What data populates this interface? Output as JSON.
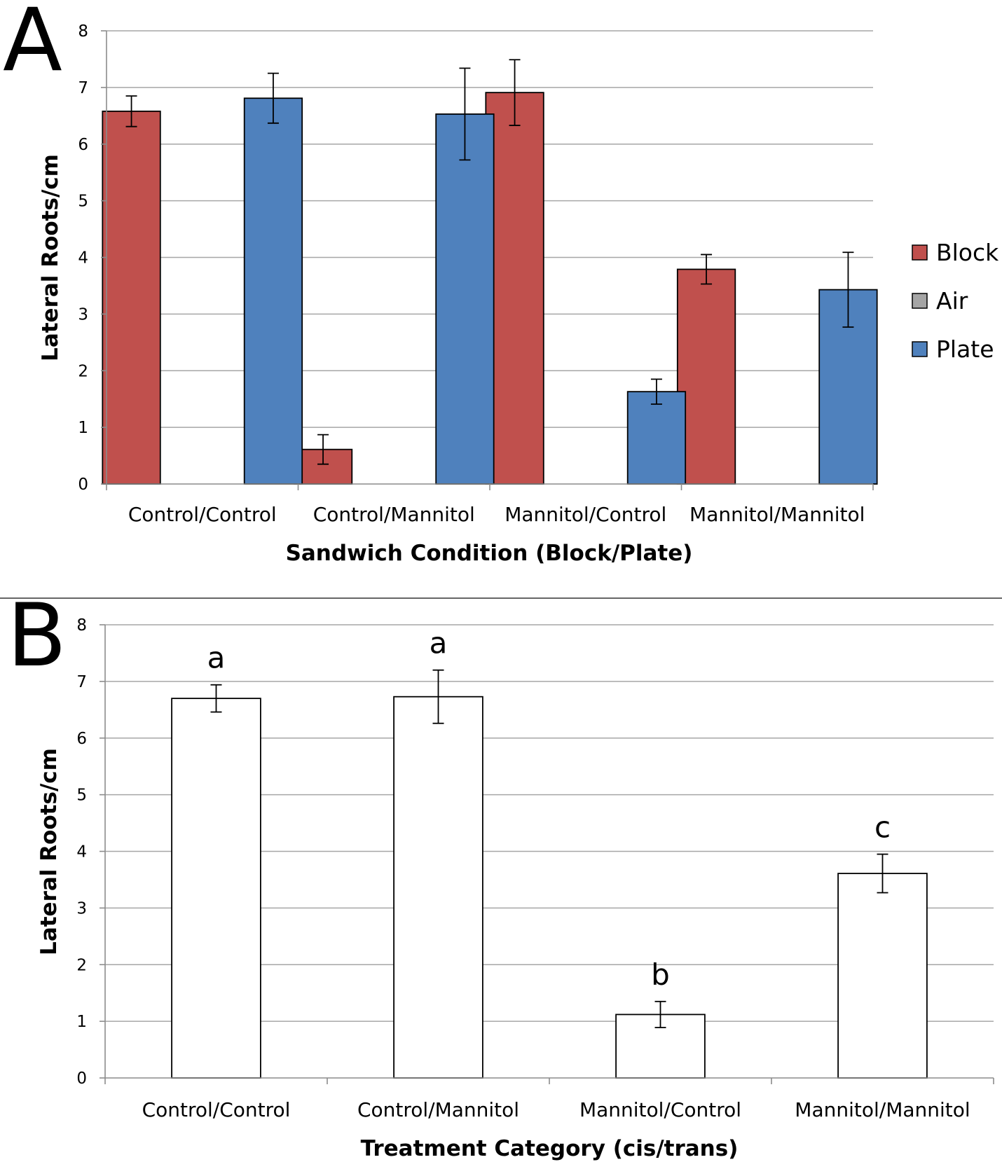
{
  "figure": {
    "divider_color": "#666666"
  },
  "chart_data": [
    {
      "type": "bar",
      "panel_label": "A",
      "categories": [
        "Control/Control",
        "Control/Mannitol",
        "Mannitol/Control",
        "Mannitol/Mannitol"
      ],
      "series": [
        {
          "name": "Block",
          "color": "#c0504d",
          "values": [
            6.58,
            0.61,
            6.91,
            3.79
          ],
          "errors": [
            0.27,
            0.26,
            0.58,
            0.26
          ]
        },
        {
          "name": "Air",
          "color": "#a5a5a5",
          "values": [
            null,
            null,
            null,
            null
          ],
          "errors": [
            null,
            null,
            null,
            null
          ]
        },
        {
          "name": "Plate",
          "color": "#4f81bd",
          "values": [
            6.81,
            6.53,
            1.63,
            3.43
          ],
          "errors": [
            0.44,
            0.81,
            0.22,
            0.66
          ]
        }
      ],
      "xlabel": "Sandwich Condition (Block/Plate)",
      "ylabel": "Lateral Roots/cm",
      "ylim": [
        0,
        8
      ],
      "yticks": [
        "0",
        "1",
        "2",
        "3",
        "4",
        "5",
        "6",
        "7",
        "8"
      ],
      "grid": true,
      "legend": "right"
    },
    {
      "type": "bar",
      "panel_label": "B",
      "categories": [
        "Control/Control",
        "Control/Mannitol",
        "Mannitol/Control",
        "Mannitol/Mannitol"
      ],
      "series": [
        {
          "color": "#ffffff",
          "values": [
            6.7,
            6.73,
            1.12,
            3.61
          ],
          "errors": [
            0.24,
            0.47,
            0.23,
            0.34
          ]
        }
      ],
      "annotations": [
        "a",
        "a",
        "b",
        "c"
      ],
      "xlabel": "Treatment Category (cis/trans)",
      "ylabel": "Lateral Roots/cm",
      "ylim": [
        0,
        8
      ],
      "yticks": [
        "0",
        "1",
        "2",
        "3",
        "4",
        "5",
        "6",
        "7",
        "8"
      ],
      "grid": true,
      "legend": "none"
    }
  ]
}
